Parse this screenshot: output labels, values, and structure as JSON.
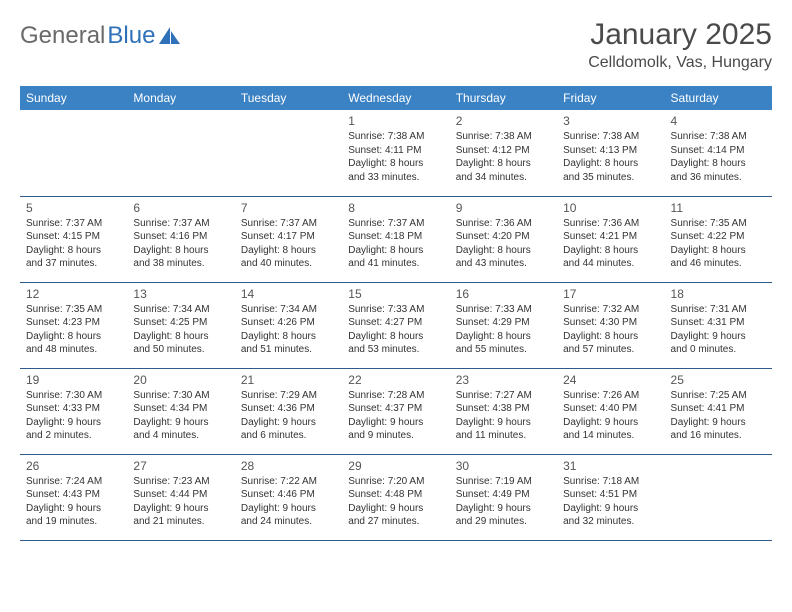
{
  "logo": {
    "text1": "General",
    "text2": "Blue"
  },
  "title": {
    "month": "January 2025",
    "location": "Celldomolk, Vas, Hungary"
  },
  "colors": {
    "header_bg": "#3b82c4",
    "header_text": "#ffffff",
    "row_border": "#2f5a8a",
    "body_text": "#333333",
    "title_text": "#4a4a4a",
    "logo_gray": "#6a6a6a",
    "logo_blue": "#2f71b8",
    "page_bg": "#ffffff"
  },
  "columns": [
    "Sunday",
    "Monday",
    "Tuesday",
    "Wednesday",
    "Thursday",
    "Friday",
    "Saturday"
  ],
  "weeks": [
    [
      null,
      null,
      null,
      {
        "n": "1",
        "sunrise": "Sunrise: 7:38 AM",
        "sunset": "Sunset: 4:11 PM",
        "d1": "Daylight: 8 hours",
        "d2": "and 33 minutes."
      },
      {
        "n": "2",
        "sunrise": "Sunrise: 7:38 AM",
        "sunset": "Sunset: 4:12 PM",
        "d1": "Daylight: 8 hours",
        "d2": "and 34 minutes."
      },
      {
        "n": "3",
        "sunrise": "Sunrise: 7:38 AM",
        "sunset": "Sunset: 4:13 PM",
        "d1": "Daylight: 8 hours",
        "d2": "and 35 minutes."
      },
      {
        "n": "4",
        "sunrise": "Sunrise: 7:38 AM",
        "sunset": "Sunset: 4:14 PM",
        "d1": "Daylight: 8 hours",
        "d2": "and 36 minutes."
      }
    ],
    [
      {
        "n": "5",
        "sunrise": "Sunrise: 7:37 AM",
        "sunset": "Sunset: 4:15 PM",
        "d1": "Daylight: 8 hours",
        "d2": "and 37 minutes."
      },
      {
        "n": "6",
        "sunrise": "Sunrise: 7:37 AM",
        "sunset": "Sunset: 4:16 PM",
        "d1": "Daylight: 8 hours",
        "d2": "and 38 minutes."
      },
      {
        "n": "7",
        "sunrise": "Sunrise: 7:37 AM",
        "sunset": "Sunset: 4:17 PM",
        "d1": "Daylight: 8 hours",
        "d2": "and 40 minutes."
      },
      {
        "n": "8",
        "sunrise": "Sunrise: 7:37 AM",
        "sunset": "Sunset: 4:18 PM",
        "d1": "Daylight: 8 hours",
        "d2": "and 41 minutes."
      },
      {
        "n": "9",
        "sunrise": "Sunrise: 7:36 AM",
        "sunset": "Sunset: 4:20 PM",
        "d1": "Daylight: 8 hours",
        "d2": "and 43 minutes."
      },
      {
        "n": "10",
        "sunrise": "Sunrise: 7:36 AM",
        "sunset": "Sunset: 4:21 PM",
        "d1": "Daylight: 8 hours",
        "d2": "and 44 minutes."
      },
      {
        "n": "11",
        "sunrise": "Sunrise: 7:35 AM",
        "sunset": "Sunset: 4:22 PM",
        "d1": "Daylight: 8 hours",
        "d2": "and 46 minutes."
      }
    ],
    [
      {
        "n": "12",
        "sunrise": "Sunrise: 7:35 AM",
        "sunset": "Sunset: 4:23 PM",
        "d1": "Daylight: 8 hours",
        "d2": "and 48 minutes."
      },
      {
        "n": "13",
        "sunrise": "Sunrise: 7:34 AM",
        "sunset": "Sunset: 4:25 PM",
        "d1": "Daylight: 8 hours",
        "d2": "and 50 minutes."
      },
      {
        "n": "14",
        "sunrise": "Sunrise: 7:34 AM",
        "sunset": "Sunset: 4:26 PM",
        "d1": "Daylight: 8 hours",
        "d2": "and 51 minutes."
      },
      {
        "n": "15",
        "sunrise": "Sunrise: 7:33 AM",
        "sunset": "Sunset: 4:27 PM",
        "d1": "Daylight: 8 hours",
        "d2": "and 53 minutes."
      },
      {
        "n": "16",
        "sunrise": "Sunrise: 7:33 AM",
        "sunset": "Sunset: 4:29 PM",
        "d1": "Daylight: 8 hours",
        "d2": "and 55 minutes."
      },
      {
        "n": "17",
        "sunrise": "Sunrise: 7:32 AM",
        "sunset": "Sunset: 4:30 PM",
        "d1": "Daylight: 8 hours",
        "d2": "and 57 minutes."
      },
      {
        "n": "18",
        "sunrise": "Sunrise: 7:31 AM",
        "sunset": "Sunset: 4:31 PM",
        "d1": "Daylight: 9 hours",
        "d2": "and 0 minutes."
      }
    ],
    [
      {
        "n": "19",
        "sunrise": "Sunrise: 7:30 AM",
        "sunset": "Sunset: 4:33 PM",
        "d1": "Daylight: 9 hours",
        "d2": "and 2 minutes."
      },
      {
        "n": "20",
        "sunrise": "Sunrise: 7:30 AM",
        "sunset": "Sunset: 4:34 PM",
        "d1": "Daylight: 9 hours",
        "d2": "and 4 minutes."
      },
      {
        "n": "21",
        "sunrise": "Sunrise: 7:29 AM",
        "sunset": "Sunset: 4:36 PM",
        "d1": "Daylight: 9 hours",
        "d2": "and 6 minutes."
      },
      {
        "n": "22",
        "sunrise": "Sunrise: 7:28 AM",
        "sunset": "Sunset: 4:37 PM",
        "d1": "Daylight: 9 hours",
        "d2": "and 9 minutes."
      },
      {
        "n": "23",
        "sunrise": "Sunrise: 7:27 AM",
        "sunset": "Sunset: 4:38 PM",
        "d1": "Daylight: 9 hours",
        "d2": "and 11 minutes."
      },
      {
        "n": "24",
        "sunrise": "Sunrise: 7:26 AM",
        "sunset": "Sunset: 4:40 PM",
        "d1": "Daylight: 9 hours",
        "d2": "and 14 minutes."
      },
      {
        "n": "25",
        "sunrise": "Sunrise: 7:25 AM",
        "sunset": "Sunset: 4:41 PM",
        "d1": "Daylight: 9 hours",
        "d2": "and 16 minutes."
      }
    ],
    [
      {
        "n": "26",
        "sunrise": "Sunrise: 7:24 AM",
        "sunset": "Sunset: 4:43 PM",
        "d1": "Daylight: 9 hours",
        "d2": "and 19 minutes."
      },
      {
        "n": "27",
        "sunrise": "Sunrise: 7:23 AM",
        "sunset": "Sunset: 4:44 PM",
        "d1": "Daylight: 9 hours",
        "d2": "and 21 minutes."
      },
      {
        "n": "28",
        "sunrise": "Sunrise: 7:22 AM",
        "sunset": "Sunset: 4:46 PM",
        "d1": "Daylight: 9 hours",
        "d2": "and 24 minutes."
      },
      {
        "n": "29",
        "sunrise": "Sunrise: 7:20 AM",
        "sunset": "Sunset: 4:48 PM",
        "d1": "Daylight: 9 hours",
        "d2": "and 27 minutes."
      },
      {
        "n": "30",
        "sunrise": "Sunrise: 7:19 AM",
        "sunset": "Sunset: 4:49 PM",
        "d1": "Daylight: 9 hours",
        "d2": "and 29 minutes."
      },
      {
        "n": "31",
        "sunrise": "Sunrise: 7:18 AM",
        "sunset": "Sunset: 4:51 PM",
        "d1": "Daylight: 9 hours",
        "d2": "and 32 minutes."
      },
      null
    ]
  ]
}
